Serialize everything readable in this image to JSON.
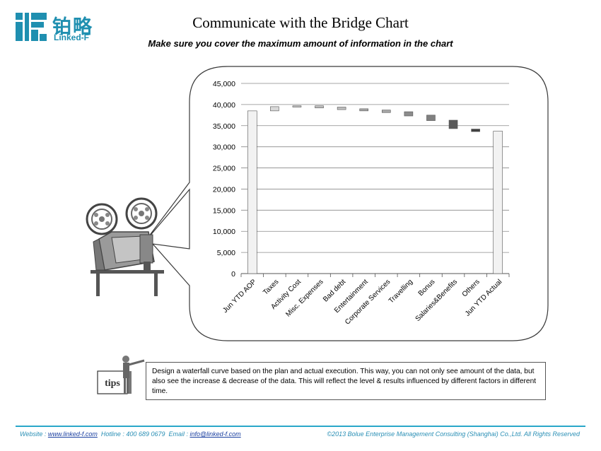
{
  "header": {
    "logo_cn": "铂略",
    "logo_en": "Linked-F",
    "title": "Communicate with the Bridge Chart",
    "subtitle": "Make sure you cover the maximum amount of information in the chart"
  },
  "chart_data": {
    "type": "bar",
    "subtype": "waterfall",
    "categories": [
      "Jun YTD AOP",
      "Taxes",
      "Activity Cost",
      "Misc. Expenses",
      "Bad debt",
      "Entertainment",
      "Corporate Services",
      "Travelling",
      "Bonus",
      "Salaries&Benefits",
      "Others",
      "Jun YTD Actual"
    ],
    "bars": [
      {
        "start": 0,
        "end": 38500,
        "kind": "total"
      },
      {
        "start": 39500,
        "end": 38500,
        "kind": "step"
      },
      {
        "start": 39700,
        "end": 39400,
        "kind": "step"
      },
      {
        "start": 39700,
        "end": 39200,
        "kind": "step"
      },
      {
        "start": 39400,
        "end": 38800,
        "kind": "step"
      },
      {
        "start": 39000,
        "end": 38500,
        "kind": "step"
      },
      {
        "start": 38700,
        "end": 38100,
        "kind": "step"
      },
      {
        "start": 38300,
        "end": 37300,
        "kind": "step"
      },
      {
        "start": 37500,
        "end": 36200,
        "kind": "step"
      },
      {
        "start": 36300,
        "end": 34300,
        "kind": "step"
      },
      {
        "start": 34200,
        "end": 33600,
        "kind": "step"
      },
      {
        "start": 0,
        "end": 33700,
        "kind": "total"
      }
    ],
    "colors": [
      "#f2f2f2",
      "#d9d9d9",
      "#bfbfbf",
      "#bfbfbf",
      "#bfbfbf",
      "#a6a6a6",
      "#a6a6a6",
      "#8c8c8c",
      "#808080",
      "#595959",
      "#404040",
      "#f2f2f2"
    ],
    "yticks": [
      "0",
      "5,000",
      "10,000",
      "15,000",
      "20,000",
      "25,000",
      "30,000",
      "35,000",
      "40,000",
      "45,000"
    ],
    "ylim": [
      0,
      45000
    ],
    "grid": true,
    "title": "",
    "xlabel": "",
    "ylabel": ""
  },
  "tips": {
    "label": "tips",
    "text": "Design a waterfall curve based on the plan and actual execution. This way, you can not only see amount of the data, but also see the increase & decrease of the data. This will reflect the level & results influenced by different factors in different time."
  },
  "footer": {
    "website_label": "Website : ",
    "website": "www.linked-f.com",
    "hotline": "Hotline : 400 689 0679",
    "email_label": "Email : ",
    "email": "info@linked-f.com",
    "copyright": "©2013 Bolue Enterprise Management Consulting (Shanghai) Co.,Ltd. All Rights Reserved"
  },
  "colors": {
    "brand": "#1f8fb0",
    "footer_line": "#2aa7c9"
  }
}
